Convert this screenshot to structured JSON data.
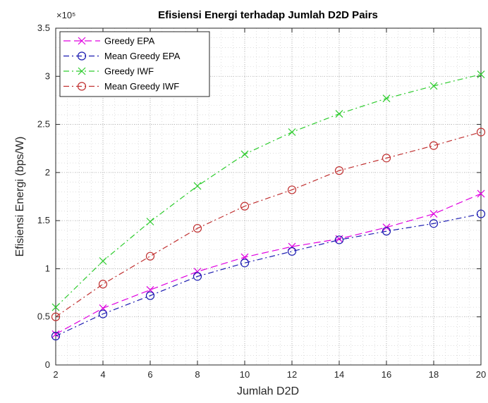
{
  "chart_data": {
    "type": "line",
    "title": "Efisiensi Energi terhadap Jumlah D2D Pairs",
    "xlabel": "Jumlah D2D",
    "ylabel": "Efisiensi Energi (bps/W)",
    "y_exponent_label": "×10⁵",
    "y_scale_factor": 100000,
    "xlim": [
      2,
      20
    ],
    "ylim": [
      0,
      350000
    ],
    "xticks": [
      2,
      4,
      6,
      8,
      10,
      12,
      14,
      16,
      18,
      20
    ],
    "yticks": [
      0,
      50000,
      100000,
      150000,
      200000,
      250000,
      300000,
      350000
    ],
    "ytick_labels": [
      "0",
      "0.5",
      "1",
      "1.5",
      "2",
      "2.5",
      "3",
      "3.5"
    ],
    "grid": true,
    "minor_grid": true,
    "legend_position": "top-left",
    "x": [
      2,
      4,
      6,
      8,
      10,
      12,
      14,
      16,
      18,
      20
    ],
    "series": [
      {
        "name": "Greedy EPA",
        "color": "#e000e0",
        "marker": "x",
        "dash": "10,5",
        "values": [
          32000,
          59000,
          78000,
          97000,
          112000,
          123000,
          131000,
          143000,
          157000,
          178000
        ]
      },
      {
        "name": "Mean Greedy EPA",
        "color": "#1a1ab0",
        "marker": "o",
        "dash": "8,4,2,4",
        "values": [
          30000,
          53000,
          72000,
          92000,
          106000,
          118000,
          130000,
          139000,
          147000,
          157000
        ]
      },
      {
        "name": "Greedy IWF",
        "color": "#2ecc2e",
        "marker": "x",
        "dash": "8,4,2,4",
        "values": [
          60000,
          108000,
          149000,
          186000,
          219000,
          242000,
          261000,
          277000,
          290000,
          302000
        ]
      },
      {
        "name": "Mean Greedy IWF",
        "color": "#c03030",
        "marker": "o",
        "dash": "8,4,2,4",
        "values": [
          50000,
          84000,
          113000,
          142000,
          165000,
          182000,
          202000,
          215000,
          228000,
          242000
        ]
      }
    ]
  }
}
